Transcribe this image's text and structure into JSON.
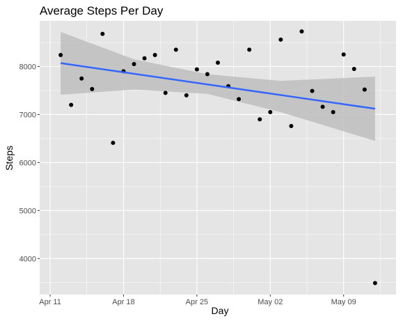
{
  "chart_data": {
    "type": "scatter",
    "title": "Average Steps Per Day",
    "xlabel": "Day",
    "ylabel": "Steps",
    "x_ticks": [
      "2025-04-11",
      "2025-04-18",
      "2025-04-25",
      "2025-05-02",
      "2025-05-09"
    ],
    "x_tick_labels": [
      "Apr 11",
      "Apr 18",
      "Apr 25",
      "May 02",
      "May 09"
    ],
    "y_ticks": [
      4000,
      5000,
      6000,
      7000,
      8000
    ],
    "xlim": [
      "2025-04-10",
      "2025-05-14"
    ],
    "ylim": [
      3250,
      8950
    ],
    "grid": true,
    "series": [
      {
        "values_by_day": [
          {
            "x": "2025-04-12",
            "y": 8240
          },
          {
            "x": "2025-04-13",
            "y": 7200
          },
          {
            "x": "2025-04-14",
            "y": 7750
          },
          {
            "x": "2025-04-15",
            "y": 7530
          },
          {
            "x": "2025-04-16",
            "y": 8680
          },
          {
            "x": "2025-04-17",
            "y": 6410
          },
          {
            "x": "2025-04-18",
            "y": 7900
          },
          {
            "x": "2025-04-19",
            "y": 8050
          },
          {
            "x": "2025-04-20",
            "y": 8170
          },
          {
            "x": "2025-04-21",
            "y": 8240
          },
          {
            "x": "2025-04-22",
            "y": 7450
          },
          {
            "x": "2025-04-23",
            "y": 8350
          },
          {
            "x": "2025-04-24",
            "y": 7400
          },
          {
            "x": "2025-04-25",
            "y": 7940
          },
          {
            "x": "2025-04-26",
            "y": 7840
          },
          {
            "x": "2025-04-27",
            "y": 8080
          },
          {
            "x": "2025-04-28",
            "y": 7590
          },
          {
            "x": "2025-04-29",
            "y": 7320
          },
          {
            "x": "2025-04-30",
            "y": 8350
          },
          {
            "x": "2025-05-01",
            "y": 6900
          },
          {
            "x": "2025-05-02",
            "y": 7050
          },
          {
            "x": "2025-05-03",
            "y": 8560
          },
          {
            "x": "2025-05-04",
            "y": 6760
          },
          {
            "x": "2025-05-05",
            "y": 8730
          },
          {
            "x": "2025-05-06",
            "y": 7490
          },
          {
            "x": "2025-05-07",
            "y": 7160
          },
          {
            "x": "2025-05-08",
            "y": 7050
          },
          {
            "x": "2025-05-09",
            "y": 8250
          },
          {
            "x": "2025-05-10",
            "y": 7950
          },
          {
            "x": "2025-05-11",
            "y": 7520
          },
          {
            "x": "2025-05-12",
            "y": 3490
          }
        ]
      }
    ],
    "trend": {
      "method": "linear",
      "color": "#3366FF",
      "start": {
        "x": "2025-04-12",
        "y": 8070
      },
      "end": {
        "x": "2025-05-12",
        "y": 7120
      },
      "ribbon": [
        {
          "x": "2025-04-12",
          "lower": 7410,
          "upper": 8720
        },
        {
          "x": "2025-04-19",
          "lower": 7520,
          "upper": 8150
        },
        {
          "x": "2025-04-26",
          "lower": 7430,
          "upper": 7840
        },
        {
          "x": "2025-05-03",
          "lower": 7050,
          "upper": 7700
        },
        {
          "x": "2025-05-12",
          "lower": 6450,
          "upper": 7790
        }
      ]
    },
    "colors": {
      "panel": "#E5E5E5",
      "grid_major": "#FFFFFF",
      "point": "#000000",
      "ribbon": "#BEBEBE"
    }
  }
}
